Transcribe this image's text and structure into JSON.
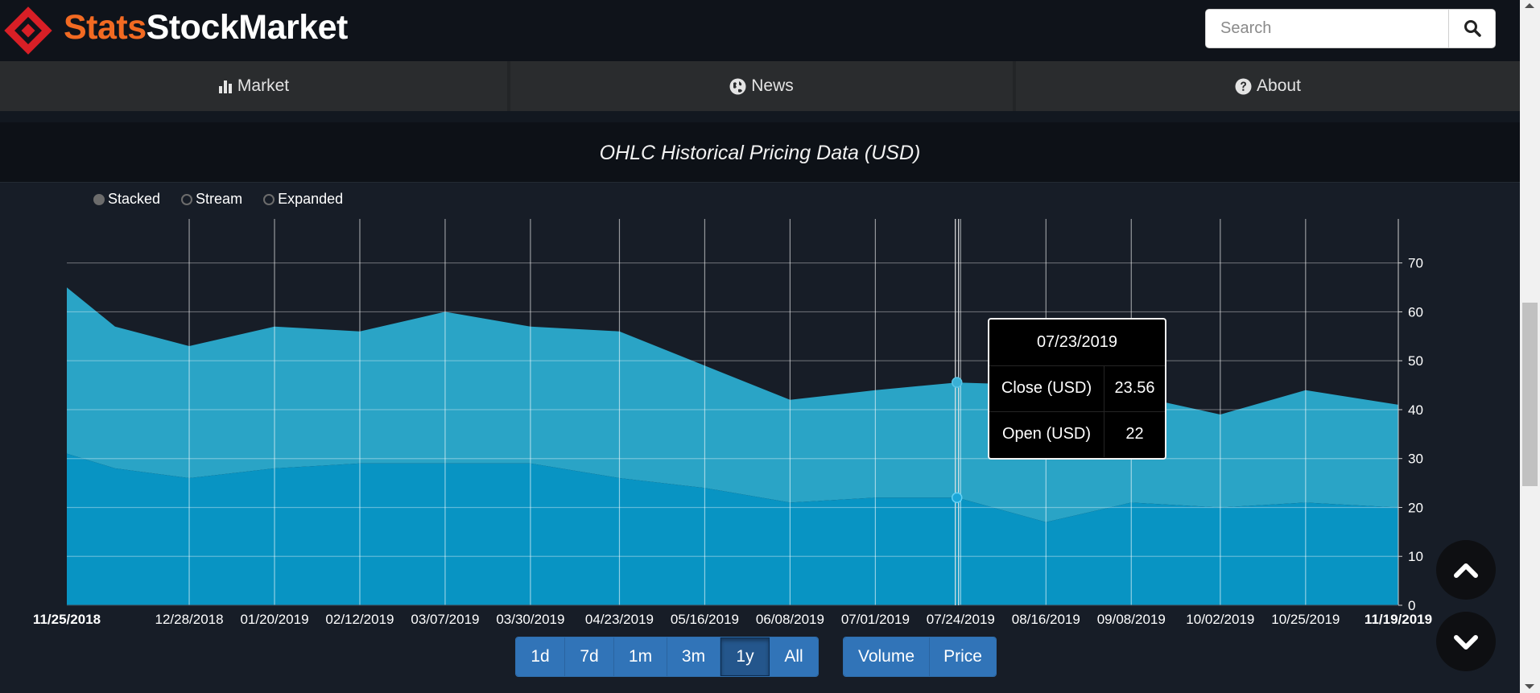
{
  "header": {
    "brand_part1": "Stats",
    "brand_part2": "StockMarket",
    "search_placeholder": "Search",
    "colors": {
      "brand_orange": "#f26a22",
      "logo_red": "#d81f26"
    }
  },
  "nav": [
    {
      "label": "Market",
      "icon": "bar-chart-icon"
    },
    {
      "label": "News",
      "icon": "globe-icon"
    },
    {
      "label": "About",
      "icon": "question-circle-icon"
    }
  ],
  "chart": {
    "title": "OHLC Historical Pricing Data (USD)",
    "modes": [
      {
        "label": "Stacked",
        "selected": true
      },
      {
        "label": "Stream",
        "selected": false
      },
      {
        "label": "Expanded",
        "selected": false
      }
    ],
    "tooltip": {
      "date": "07/23/2019",
      "rows": [
        {
          "key": "Close (USD)",
          "value": "23.56"
        },
        {
          "key": "Open (USD)",
          "value": "22"
        }
      ]
    },
    "ranges": [
      "1d",
      "7d",
      "1m",
      "3m",
      "1y",
      "All"
    ],
    "active_range": "1y",
    "views": [
      "Volume",
      "Price"
    ]
  },
  "chart_data": {
    "type": "area",
    "stacked": true,
    "title": "OHLC Historical Pricing Data (USD)",
    "x_start_label": "11/25/2018",
    "x_end_label": "11/19/2019",
    "xtick_labels": [
      "12/28/2018",
      "01/20/2019",
      "02/12/2019",
      "03/07/2019",
      "03/30/2019",
      "04/23/2019",
      "05/16/2019",
      "06/08/2019",
      "07/01/2019",
      "07/24/2019",
      "08/16/2019",
      "09/08/2019",
      "10/02/2019",
      "10/25/2019"
    ],
    "x": [
      "11/25/2018",
      "12/08/2018",
      "12/28/2018",
      "01/20/2019",
      "02/12/2019",
      "03/07/2019",
      "03/30/2019",
      "04/23/2019",
      "05/16/2019",
      "06/08/2019",
      "07/01/2019",
      "07/23/2019",
      "08/16/2019",
      "09/08/2019",
      "10/02/2019",
      "10/25/2019",
      "11/19/2019"
    ],
    "series": [
      {
        "name": "Open (USD)",
        "color": "#0894c3",
        "values": [
          31,
          28,
          26,
          28,
          29,
          29,
          29,
          26,
          24,
          21,
          22,
          22,
          17,
          21,
          20,
          21,
          20
        ]
      },
      {
        "name": "Close (USD)",
        "color": "#2aa4c6",
        "values": [
          34,
          29,
          27,
          29,
          27,
          31,
          28,
          30,
          25,
          21,
          22,
          23.56,
          28,
          22,
          19,
          23,
          21
        ]
      }
    ],
    "ylim": [
      0,
      79
    ],
    "yticks": [
      0,
      10,
      20,
      30,
      40,
      50,
      60,
      70
    ],
    "grid": true,
    "highlight": {
      "x": "07/23/2019",
      "open": 22,
      "close": 23.56
    }
  }
}
